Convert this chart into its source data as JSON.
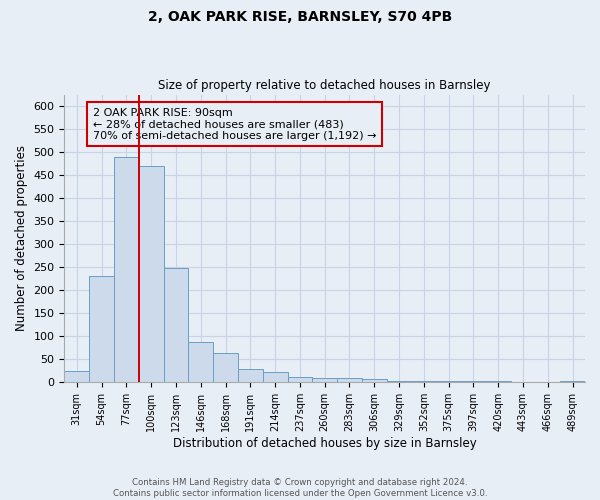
{
  "title": "2, OAK PARK RISE, BARNSLEY, S70 4PB",
  "subtitle": "Size of property relative to detached houses in Barnsley",
  "xlabel": "Distribution of detached houses by size in Barnsley",
  "ylabel": "Number of detached properties",
  "bin_labels": [
    "31sqm",
    "54sqm",
    "77sqm",
    "100sqm",
    "123sqm",
    "146sqm",
    "168sqm",
    "191sqm",
    "214sqm",
    "237sqm",
    "260sqm",
    "283sqm",
    "306sqm",
    "329sqm",
    "352sqm",
    "375sqm",
    "397sqm",
    "420sqm",
    "443sqm",
    "466sqm",
    "489sqm"
  ],
  "bar_heights": [
    25,
    230,
    490,
    470,
    248,
    88,
    63,
    30,
    22,
    12,
    10,
    10,
    8,
    3,
    3,
    3,
    3,
    3,
    1,
    1,
    3
  ],
  "bar_color": "#ccdaec",
  "bar_edge_color": "#6a9ec5",
  "grid_color": "#c8d4e4",
  "background_color": "#e8eef6",
  "property_line_color": "#cc0000",
  "property_line_x": 2.5,
  "annotation_text": "2 OAK PARK RISE: 90sqm\n← 28% of detached houses are smaller (483)\n70% of semi-detached houses are larger (1,192) →",
  "annotation_box_color": "#cc0000",
  "ylim": [
    0,
    625
  ],
  "yticks": [
    0,
    50,
    100,
    150,
    200,
    250,
    300,
    350,
    400,
    450,
    500,
    550,
    600
  ],
  "footer_line1": "Contains HM Land Registry data © Crown copyright and database right 2024.",
  "footer_line2": "Contains public sector information licensed under the Open Government Licence v3.0."
}
